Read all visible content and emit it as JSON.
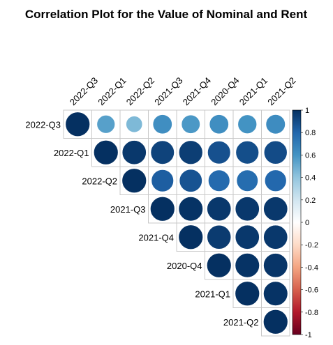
{
  "chart_data": {
    "type": "heatmap",
    "subtype": "correlation-upper-circles",
    "title": "Correlation Plot for the Value of Nominal and Rent",
    "variables": [
      "2022-Q3",
      "2022-Q1",
      "2022-Q2",
      "2021-Q3",
      "2021-Q4",
      "2020-Q4",
      "2021-Q1",
      "2021-Q2"
    ],
    "matrix": [
      [
        1.0,
        0.55,
        0.45,
        0.62,
        0.58,
        0.62,
        0.6,
        0.63
      ],
      [
        0.55,
        1.0,
        0.97,
        0.93,
        0.95,
        0.88,
        0.89,
        0.9
      ],
      [
        0.45,
        0.97,
        1.0,
        0.83,
        0.87,
        0.78,
        0.77,
        0.79
      ],
      [
        0.62,
        0.93,
        0.83,
        1.0,
        0.99,
        0.97,
        0.97,
        0.97
      ],
      [
        0.58,
        0.95,
        0.87,
        0.99,
        1.0,
        0.96,
        0.97,
        0.97
      ],
      [
        0.62,
        0.88,
        0.78,
        0.97,
        0.96,
        1.0,
        0.99,
        0.98
      ],
      [
        0.6,
        0.89,
        0.77,
        0.97,
        0.97,
        0.99,
        1.0,
        0.99
      ],
      [
        0.63,
        0.9,
        0.79,
        0.97,
        0.97,
        0.98,
        0.99,
        1.0
      ]
    ],
    "colorbar": {
      "range": [
        -1,
        1
      ],
      "ticks": [
        "1",
        "0.8",
        "0.6",
        "0.4",
        "0.2",
        "0",
        "-0.2",
        "-0.4",
        "-0.6",
        "-0.8",
        "-1"
      ],
      "tick_values": [
        1,
        0.8,
        0.6,
        0.4,
        0.2,
        0,
        -0.2,
        -0.4,
        -0.6,
        -0.8,
        -1
      ],
      "colors": [
        "#67001F",
        "#B2182B",
        "#D6604D",
        "#F4A582",
        "#FDDBC7",
        "#FFFFFF",
        "#D1E5F0",
        "#92C5DE",
        "#4393C3",
        "#2166AC",
        "#053061"
      ],
      "placement": "right"
    },
    "grid": true
  }
}
